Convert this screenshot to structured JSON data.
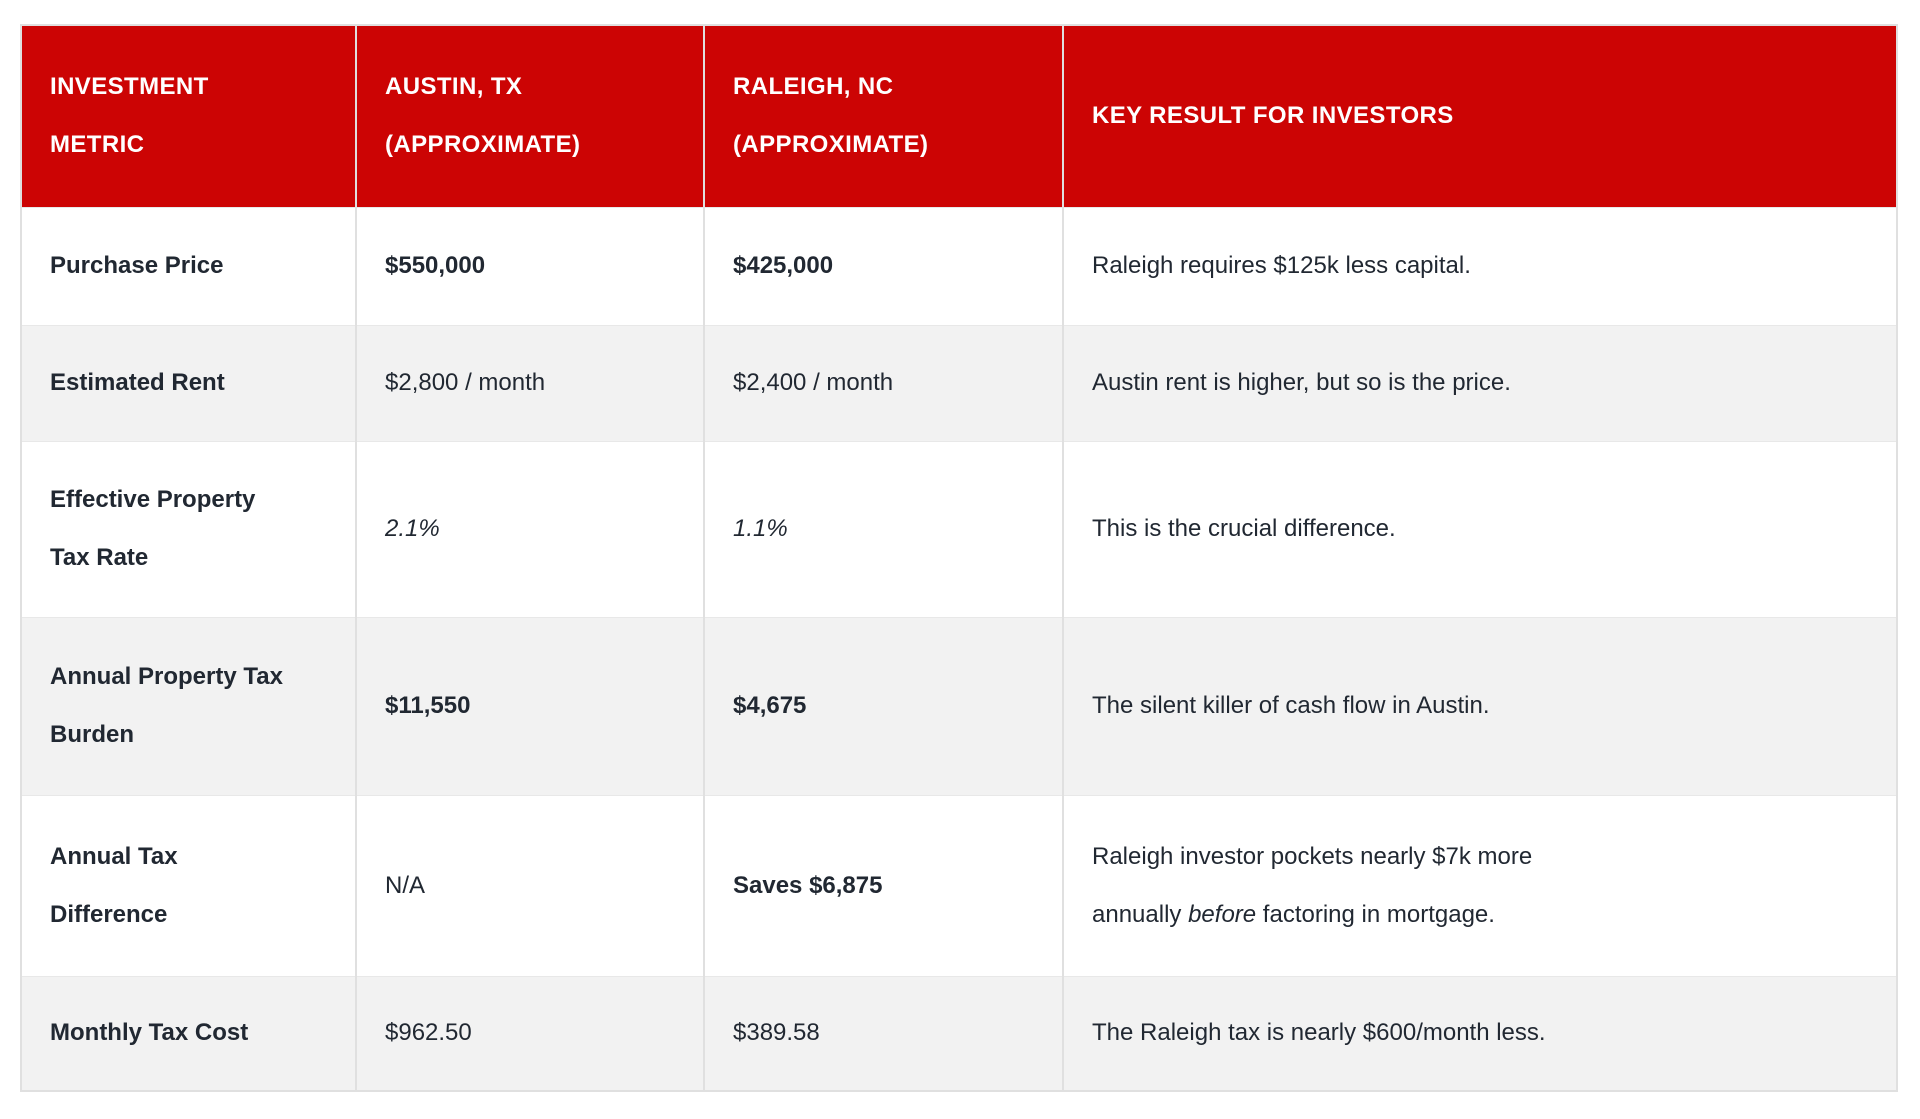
{
  "colors": {
    "header_bg": "#CC0404",
    "header_text": "#FFFFFF",
    "body_text": "#212832",
    "alt_row_bg": "#F2F2F2",
    "border": "#E0E0E0",
    "row_divider": "#E8E8E8",
    "page_bg": "#FFFFFF"
  },
  "table": {
    "header": {
      "metric": "INVESTMENT\nMETRIC",
      "austin": "AUSTIN, TX\n(APPROXIMATE)",
      "raleigh": "RALEIGH, NC\n(APPROXIMATE)",
      "key_result": "KEY RESULT FOR INVESTORS"
    },
    "rows": [
      {
        "metric": "Purchase Price",
        "austin": "$550,000",
        "raleigh": "$425,000",
        "key_result": "Raleigh requires $125k less capital."
      },
      {
        "metric": "Estimated Rent",
        "austin": "$2,800 / month",
        "raleigh": "$2,400 / month",
        "key_result": "Austin rent is higher, but so is the price."
      },
      {
        "metric": "Effective Property\nTax Rate",
        "austin": "2.1%",
        "raleigh": "1.1%",
        "key_result": "This is the crucial difference."
      },
      {
        "metric": "Annual Property Tax\nBurden",
        "austin": "$11,550",
        "raleigh": "$4,675",
        "key_result": "The silent killer of cash flow in Austin."
      },
      {
        "metric": "Annual Tax\nDifference",
        "austin": "N/A",
        "raleigh": "Saves $6,875",
        "key_result_pre": "Raleigh investor pockets nearly $7k more\nannually ",
        "key_result_italic": "before",
        "key_result_post": " factoring in mortgage."
      },
      {
        "metric": "Monthly Tax Cost",
        "austin": "$962.50",
        "raleigh": "$389.58",
        "key_result": "The Raleigh tax is nearly $600/month less."
      }
    ]
  }
}
